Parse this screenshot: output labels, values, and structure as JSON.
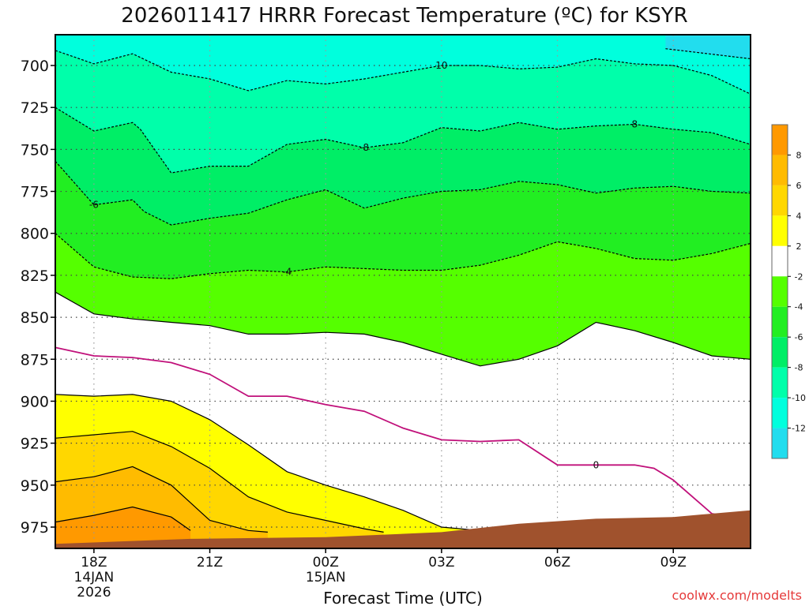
{
  "chart_data": {
    "type": "heatmap",
    "title": "2026011417 HRRR Forecast Temperature (ºC) for KSYR",
    "xlabel": "Forecast Time (UTC)",
    "ylabel": "",
    "x_ticks": [
      {
        "hour": 1,
        "label": "18Z",
        "date": "14JAN",
        "year": "2026"
      },
      {
        "hour": 4,
        "label": "21Z"
      },
      {
        "hour": 7,
        "label": "00Z",
        "date": "15JAN"
      },
      {
        "hour": 10,
        "label": "03Z"
      },
      {
        "hour": 13,
        "label": "06Z"
      },
      {
        "hour": 16,
        "label": "09Z"
      }
    ],
    "y_ticks": [
      700,
      725,
      750,
      775,
      800,
      825,
      850,
      875,
      900,
      925,
      950,
      975
    ],
    "ylim": [
      980,
      690
    ],
    "xlim": [
      0,
      18
    ],
    "colorbar": {
      "labels": [
        "8",
        "6",
        "4",
        "2",
        "-2",
        "-4",
        "-6",
        "-8",
        "-10",
        "-12"
      ],
      "colors": [
        "#ff9900",
        "#ffbb00",
        "#ffd700",
        "#ffff00",
        "#ffffff",
        "#55ff00",
        "#22ee22",
        "#00ee66",
        "#00ffaa",
        "#00ffdd",
        "#22ddee"
      ]
    },
    "isotherms": [
      {
        "value": -10,
        "label": "10",
        "dashed": true,
        "points": [
          [
            15.8,
            690
          ],
          [
            18,
            696
          ]
        ]
      },
      {
        "value": -10,
        "label": "10",
        "dashed": true,
        "points": [
          [
            0,
            691
          ],
          [
            1,
            699
          ],
          [
            2,
            693
          ],
          [
            3,
            704
          ],
          [
            4,
            708
          ],
          [
            5,
            715
          ],
          [
            6,
            709
          ],
          [
            7,
            711
          ],
          [
            8,
            708
          ],
          [
            9,
            704
          ],
          [
            10,
            700
          ],
          [
            11,
            700
          ],
          [
            12,
            702
          ],
          [
            13,
            701
          ],
          [
            14,
            696
          ],
          [
            15,
            699
          ],
          [
            16,
            700
          ],
          [
            17,
            706
          ],
          [
            18,
            717
          ]
        ]
      },
      {
        "value": -8,
        "label": "8",
        "dashed": true,
        "points": [
          [
            0,
            725
          ],
          [
            1,
            739
          ],
          [
            2,
            734
          ],
          [
            2.2,
            738
          ],
          [
            3,
            764
          ],
          [
            4,
            760
          ],
          [
            5,
            760
          ],
          [
            6,
            747
          ],
          [
            7,
            744
          ],
          [
            8,
            749
          ],
          [
            9,
            746
          ],
          [
            10,
            737
          ],
          [
            11,
            739
          ],
          [
            12,
            734
          ],
          [
            13,
            738
          ],
          [
            14,
            736
          ],
          [
            15,
            735
          ],
          [
            16,
            738
          ],
          [
            17,
            740
          ],
          [
            18,
            747
          ]
        ]
      },
      {
        "value": -6,
        "label": "6",
        "dashed": true,
        "points": [
          [
            0,
            757
          ],
          [
            1,
            783
          ],
          [
            2,
            780
          ],
          [
            2.3,
            787
          ],
          [
            3,
            795
          ],
          [
            4,
            791
          ],
          [
            5,
            788
          ],
          [
            6,
            780
          ],
          [
            7,
            774
          ],
          [
            8,
            785
          ],
          [
            9,
            779
          ],
          [
            10,
            775
          ],
          [
            11,
            774
          ],
          [
            12,
            769
          ],
          [
            13,
            771
          ],
          [
            14,
            776
          ],
          [
            15,
            773
          ],
          [
            16,
            772
          ],
          [
            17,
            775
          ],
          [
            18,
            776
          ]
        ]
      },
      {
        "value": -4,
        "label": "4",
        "dashed": true,
        "points": [
          [
            0,
            800
          ],
          [
            1,
            820
          ],
          [
            2,
            826
          ],
          [
            3,
            827
          ],
          [
            4,
            824
          ],
          [
            5,
            822
          ],
          [
            6,
            823
          ],
          [
            7,
            820
          ],
          [
            8,
            821
          ],
          [
            9,
            822
          ],
          [
            10,
            822
          ],
          [
            11,
            819
          ],
          [
            12,
            813
          ],
          [
            13,
            805
          ],
          [
            14,
            809
          ],
          [
            15,
            815
          ],
          [
            16,
            816
          ],
          [
            17,
            812
          ],
          [
            18,
            806
          ]
        ]
      },
      {
        "value": -2,
        "label": "",
        "dashed": false,
        "points": [
          [
            0,
            835
          ],
          [
            1,
            848
          ],
          [
            2,
            851
          ],
          [
            3,
            853
          ],
          [
            4,
            855
          ],
          [
            5,
            860
          ],
          [
            6,
            860
          ],
          [
            7,
            859
          ],
          [
            8,
            860
          ],
          [
            9,
            865
          ],
          [
            10,
            872
          ],
          [
            11,
            879
          ],
          [
            12,
            875
          ],
          [
            13,
            867
          ],
          [
            14,
            853
          ],
          [
            15,
            858
          ],
          [
            16,
            865
          ],
          [
            17,
            873
          ],
          [
            18,
            875
          ]
        ]
      },
      {
        "value": 0,
        "label": "0",
        "dashed": false,
        "points": [
          [
            0,
            868
          ],
          [
            1,
            873
          ],
          [
            2,
            874
          ],
          [
            3,
            877
          ],
          [
            4,
            884
          ],
          [
            5,
            897
          ],
          [
            6,
            897
          ],
          [
            7,
            902
          ],
          [
            8,
            906
          ],
          [
            9,
            916
          ],
          [
            10,
            923
          ],
          [
            11,
            924
          ],
          [
            12,
            923
          ],
          [
            13,
            938
          ],
          [
            14,
            938
          ],
          [
            15,
            938
          ],
          [
            15.5,
            940
          ],
          [
            16,
            947
          ],
          [
            17,
            967
          ],
          [
            18,
            971
          ]
        ]
      },
      {
        "value": 2,
        "label": "",
        "dashed": false,
        "points": [
          [
            0,
            896
          ],
          [
            1,
            897
          ],
          [
            2,
            896
          ],
          [
            3,
            900
          ],
          [
            4,
            911
          ],
          [
            5,
            926
          ],
          [
            6,
            942
          ],
          [
            7,
            950
          ],
          [
            8,
            957
          ],
          [
            9,
            965
          ],
          [
            10,
            975
          ],
          [
            11,
            977
          ],
          [
            11.5,
            979
          ]
        ]
      },
      {
        "value": 4,
        "label": "",
        "dashed": false,
        "points": [
          [
            0,
            922
          ],
          [
            1,
            920
          ],
          [
            2,
            918
          ],
          [
            3,
            927
          ],
          [
            4,
            940
          ],
          [
            5,
            957
          ],
          [
            6,
            966
          ],
          [
            7,
            971
          ],
          [
            8,
            976
          ],
          [
            8.5,
            978
          ]
        ]
      },
      {
        "value": 6,
        "label": "",
        "dashed": false,
        "points": [
          [
            0,
            948
          ],
          [
            1,
            945
          ],
          [
            2,
            939
          ],
          [
            3,
            950
          ],
          [
            4,
            971
          ],
          [
            5,
            977
          ],
          [
            5.5,
            978
          ]
        ]
      },
      {
        "value": 8,
        "label": "",
        "dashed": false,
        "points": [
          [
            0,
            972
          ],
          [
            1,
            968
          ],
          [
            2,
            963
          ],
          [
            3,
            969
          ],
          [
            3.5,
            977
          ]
        ]
      }
    ],
    "terrain": {
      "color": "#a0522d"
    }
  },
  "watermark": "coolwx.com/modelts"
}
